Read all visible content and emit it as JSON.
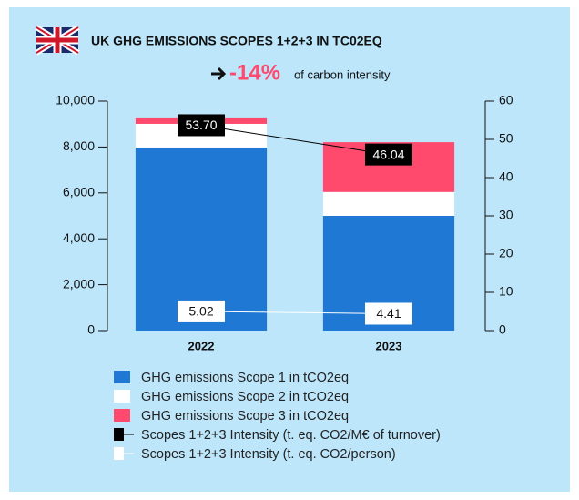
{
  "chart_data": {
    "type": "bar",
    "title": "UK GHG EMISSIONS SCOPES 1+2+3 IN TC02EQ",
    "annotation": "-14%",
    "subtitle": "of carbon intensity",
    "categories": [
      "2022",
      "2023"
    ],
    "series": [
      {
        "name": "GHG emissions Scope 1 in tCO2eq",
        "color": "#1f78d4",
        "values": [
          7980,
          5000
        ]
      },
      {
        "name": "GHG emissions Scope 2 in tCO2eq",
        "color": "#ffffff",
        "values": [
          1030,
          1040
        ]
      },
      {
        "name": "GHG emissions Scope 3 in tCO2eq",
        "color": "#ff4a6e",
        "values": [
          240,
          2170
        ]
      },
      {
        "name": "Scopes 1+2+3 Intensity (t. eq. CO2/M€ of turnover)",
        "color": "#000000",
        "axis": "y2",
        "type": "line",
        "values": [
          53.7,
          46.04
        ],
        "value_labels": [
          "53.70",
          "46.04"
        ]
      },
      {
        "name": "Scopes 1+2+3 Intensity (t. eq. CO2/person)",
        "color": "#ffffff",
        "axis": "y2",
        "type": "line",
        "values": [
          5.02,
          4.41
        ]
      }
    ],
    "ylim": [
      0,
      10000
    ],
    "yticks": [
      0,
      {
        "value": 2000,
        "label": "2,000"
      },
      {
        "value": 4000,
        "label": "4,000"
      },
      {
        "value": 6000,
        "label": "6,000"
      },
      {
        "value": 8000,
        "label": "8,000"
      },
      {
        "value": 10000,
        "label": "10,000"
      }
    ],
    "y2lim": [
      0,
      60
    ],
    "y2ticks": [
      0,
      10,
      20,
      30,
      40,
      50,
      60
    ],
    "stacked": true
  }
}
